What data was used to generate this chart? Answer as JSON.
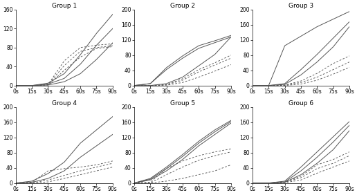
{
  "groups": [
    "Group 1",
    "Group 2",
    "Group 3",
    "Group 4",
    "Group 5",
    "Group 6"
  ],
  "x_ticks": [
    0,
    15,
    30,
    45,
    60,
    75,
    90
  ],
  "x_tick_labels": [
    "0s",
    "15s",
    "30s",
    "45s",
    "60s",
    "75s",
    "90s"
  ],
  "group1": {
    "ylim": [
      0,
      160
    ],
    "yticks": [
      0,
      40,
      80,
      120,
      160
    ],
    "ytick_labels": [
      "0",
      "40",
      "80",
      "120",
      "160"
    ],
    "solid": [
      [
        0,
        0,
        5,
        25,
        65,
        110,
        150
      ],
      [
        0,
        0,
        3,
        15,
        45,
        85,
        120
      ],
      [
        0,
        0,
        1,
        8,
        25,
        55,
        90
      ]
    ],
    "dashed": [
      [
        0,
        0,
        2,
        52,
        80,
        85,
        88
      ],
      [
        0,
        0,
        2,
        42,
        72,
        80,
        84
      ],
      [
        0,
        0,
        1,
        32,
        60,
        78,
        82
      ]
    ]
  },
  "group2": {
    "ylim": [
      0,
      200
    ],
    "yticks": [
      0,
      40,
      80,
      120,
      160,
      200
    ],
    "ytick_labels": [
      "0",
      "40",
      "80",
      "120",
      "160",
      "200"
    ],
    "solid": [
      [
        0,
        5,
        47,
        78,
        105,
        118,
        132
      ],
      [
        0,
        5,
        42,
        72,
        98,
        113,
        128
      ],
      [
        0,
        0,
        5,
        22,
        52,
        82,
        128
      ]
    ],
    "dashed": [
      [
        0,
        0,
        2,
        18,
        42,
        60,
        80
      ],
      [
        0,
        0,
        2,
        14,
        36,
        54,
        72
      ],
      [
        0,
        0,
        1,
        8,
        22,
        38,
        55
      ]
    ]
  },
  "group3": {
    "ylim": [
      0,
      200
    ],
    "yticks": [
      0,
      40,
      80,
      120,
      160,
      200
    ],
    "ytick_labels": [
      "0",
      "40",
      "80",
      "120",
      "160",
      "200"
    ],
    "solid": [
      [
        0,
        0,
        105,
        130,
        155,
        175,
        195
      ],
      [
        0,
        0,
        5,
        42,
        82,
        125,
        168
      ],
      [
        0,
        0,
        3,
        28,
        62,
        102,
        155
      ]
    ],
    "dashed": [
      [
        0,
        0,
        1,
        12,
        32,
        58,
        78
      ],
      [
        0,
        0,
        1,
        8,
        22,
        42,
        62
      ],
      [
        0,
        0,
        0,
        4,
        14,
        30,
        48
      ]
    ]
  },
  "group4": {
    "ylim": [
      0,
      200
    ],
    "yticks": [
      0,
      40,
      80,
      120,
      160,
      200
    ],
    "ytick_labels": [
      "0",
      "40",
      "80",
      "120",
      "160",
      "200"
    ],
    "solid": [
      [
        0,
        5,
        25,
        55,
        105,
        140,
        175
      ],
      [
        0,
        2,
        12,
        32,
        68,
        98,
        128
      ]
    ],
    "dashed": [
      [
        0,
        2,
        32,
        38,
        42,
        48,
        58
      ],
      [
        0,
        0,
        8,
        20,
        32,
        42,
        52
      ],
      [
        0,
        0,
        3,
        12,
        22,
        32,
        42
      ]
    ]
  },
  "group5": {
    "ylim": [
      0,
      200
    ],
    "yticks": [
      0,
      40,
      80,
      120,
      160,
      200
    ],
    "ytick_labels": [
      "0",
      "40",
      "80",
      "120",
      "160",
      "200"
    ],
    "solid": [
      [
        0,
        12,
        42,
        75,
        110,
        140,
        165
      ],
      [
        0,
        10,
        38,
        70,
        105,
        135,
        162
      ],
      [
        0,
        8,
        32,
        62,
        98,
        128,
        158
      ]
    ],
    "dashed": [
      [
        0,
        2,
        38,
        58,
        72,
        82,
        90
      ],
      [
        0,
        0,
        22,
        42,
        60,
        72,
        82
      ],
      [
        0,
        0,
        5,
        12,
        22,
        32,
        48
      ]
    ]
  },
  "group6": {
    "ylim": [
      0,
      200
    ],
    "yticks": [
      0,
      40,
      80,
      120,
      160,
      200
    ],
    "ytick_labels": [
      "0",
      "40",
      "80",
      "120",
      "160",
      "200"
    ],
    "solid": [
      [
        0,
        0,
        5,
        42,
        82,
        122,
        162
      ],
      [
        0,
        0,
        3,
        32,
        68,
        108,
        152
      ],
      [
        0,
        0,
        2,
        22,
        52,
        88,
        138
      ]
    ],
    "dashed": [
      [
        0,
        0,
        2,
        18,
        48,
        62,
        82
      ],
      [
        0,
        0,
        2,
        14,
        38,
        52,
        72
      ],
      [
        0,
        0,
        1,
        8,
        26,
        42,
        58
      ]
    ]
  },
  "line_color": "#555555",
  "background_color": "#ffffff",
  "title_fontsize": 6.5,
  "tick_fontsize": 5.5
}
